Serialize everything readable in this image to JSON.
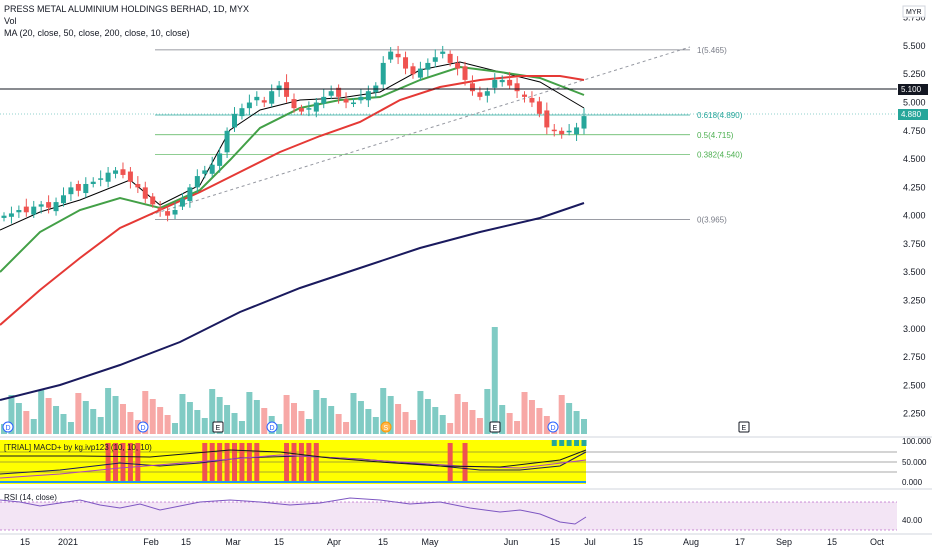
{
  "legend": {
    "title": "PRESS METAL ALUMINIUM HOLDINGS BERHAD, 1D, MYX",
    "vol": "Vol",
    "ma": "MA (20, close, 50, close, 200, close, 10, close)",
    "macd": "[TRIAL] MACD+ by kg.ivp123 (10, 10, 10)",
    "rsi": "RSI (14, close)"
  },
  "currency": "MYR",
  "price_axis": [
    "5.750",
    "5.500",
    "5.250",
    "5.000",
    "4.750",
    "4.500",
    "4.250",
    "4.000",
    "3.750",
    "3.500",
    "3.250",
    "3.000",
    "2.750",
    "2.500",
    "2.250"
  ],
  "price_badges": {
    "last": "4.880",
    "level": "5.100"
  },
  "macd_axis": [
    "100.000",
    "50.000",
    "0.000"
  ],
  "rsi_axis": [
    "40.00"
  ],
  "time_axis": [
    "15",
    "2021",
    "Feb",
    "15",
    "Mar",
    "15",
    "Apr",
    "15",
    "May",
    "Jun",
    "15",
    "Jul",
    "15",
    "Aug",
    "17",
    "Sep",
    "15",
    "Oct"
  ],
  "fib": [
    {
      "label": "1(5.465)",
      "color": "#787b86"
    },
    {
      "label": "0.618(4.890)",
      "color": "#26a69a"
    },
    {
      "label": "0.5(4.715)",
      "color": "#4caf50"
    },
    {
      "label": "0.382(4.540)",
      "color": "#4caf50"
    },
    {
      "label": "0(3.965)",
      "color": "#787b86"
    }
  ],
  "events": {
    "dividend": "D",
    "earnings": "E",
    "split": "S"
  },
  "colors": {
    "up": "#26a69a",
    "down": "#ef5350",
    "ma20": "#000000",
    "ma50": "#43a047",
    "ma200": "#e53935",
    "ma10": "#1a1a5e",
    "macd_bg": "#ffff00",
    "rsi_bg": "#f3e5f5"
  },
  "chart_data": {
    "type": "candlestick",
    "ylim": [
      2.15,
      5.8
    ],
    "x": [
      "15",
      "2021",
      "Feb",
      "15",
      "Mar",
      "15",
      "Apr",
      "15",
      "May",
      "Jun",
      "15",
      "Jul",
      "15",
      "Aug",
      "17",
      "Sep",
      "15",
      "Oct"
    ],
    "closes": [
      4.0,
      4.02,
      4.05,
      4.03,
      4.08,
      4.1,
      4.07,
      4.12,
      4.18,
      4.25,
      4.22,
      4.28,
      4.3,
      4.33,
      4.38,
      4.4,
      4.36,
      4.3,
      4.25,
      4.15,
      4.1,
      4.05,
      4.0,
      4.05,
      4.15,
      4.25,
      4.35,
      4.4,
      4.45,
      4.55,
      4.75,
      4.9,
      4.95,
      5.0,
      5.05,
      5.0,
      5.1,
      5.15,
      5.05,
      4.95,
      4.92,
      4.95,
      5.0,
      5.05,
      5.1,
      5.05,
      5.0,
      5.0,
      5.05,
      5.1,
      5.15,
      5.35,
      5.45,
      5.4,
      5.3,
      5.25,
      5.3,
      5.35,
      5.4,
      5.45,
      5.35,
      5.3,
      5.2,
      5.1,
      5.05,
      5.1,
      5.2,
      5.2,
      5.15,
      5.1,
      5.05,
      5.0,
      4.9,
      4.78,
      4.75,
      4.72,
      4.75,
      4.78,
      4.88
    ]
  }
}
